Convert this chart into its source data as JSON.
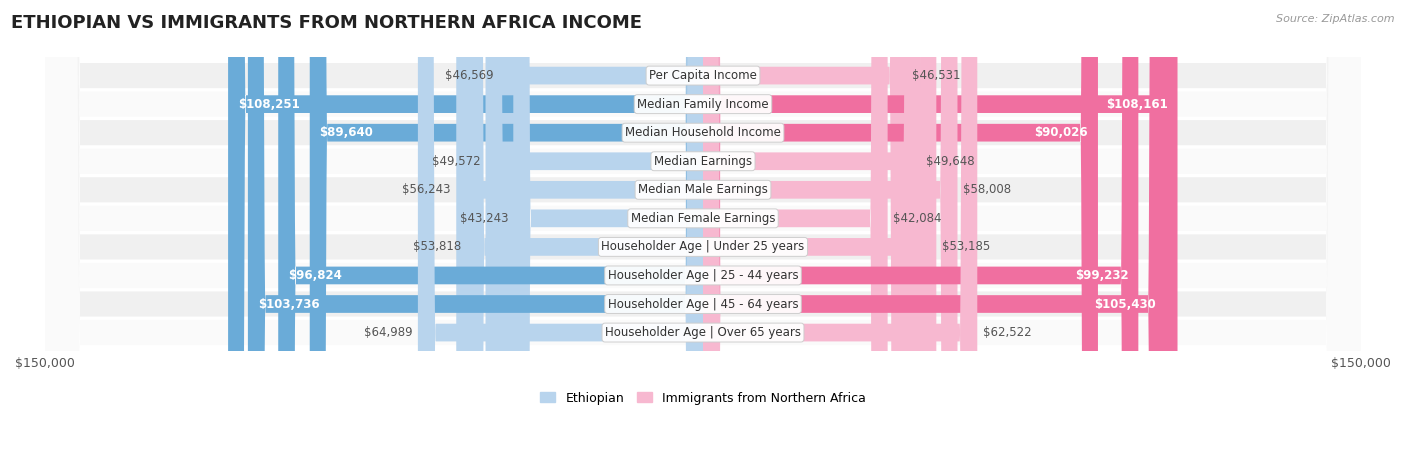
{
  "title": "ETHIOPIAN VS IMMIGRANTS FROM NORTHERN AFRICA INCOME",
  "source": "Source: ZipAtlas.com",
  "categories": [
    "Per Capita Income",
    "Median Family Income",
    "Median Household Income",
    "Median Earnings",
    "Median Male Earnings",
    "Median Female Earnings",
    "Householder Age | Under 25 years",
    "Householder Age | 25 - 44 years",
    "Householder Age | 45 - 64 years",
    "Householder Age | Over 65 years"
  ],
  "ethiopian_values": [
    46569,
    108251,
    89640,
    49572,
    56243,
    43243,
    53818,
    96824,
    103736,
    64989
  ],
  "immigrant_values": [
    46531,
    108161,
    90026,
    49648,
    58008,
    42084,
    53185,
    99232,
    105430,
    62522
  ],
  "ethiopian_labels": [
    "$46,569",
    "$108,251",
    "$89,640",
    "$49,572",
    "$56,243",
    "$43,243",
    "$53,818",
    "$96,824",
    "$103,736",
    "$64,989"
  ],
  "immigrant_labels": [
    "$46,531",
    "$108,161",
    "$90,026",
    "$49,648",
    "$58,008",
    "$42,084",
    "$53,185",
    "$99,232",
    "$105,430",
    "$62,522"
  ],
  "max_value": 150000,
  "inside_threshold": 65000,
  "ethiopian_color_light": "#b8d4ed",
  "ethiopian_color_dark": "#6aabd8",
  "immigrant_color_light": "#f7b8d0",
  "immigrant_color_dark": "#f06fa0",
  "row_bg_odd": "#f0f0f0",
  "row_bg_even": "#fafafa",
  "background_color": "#ffffff",
  "title_fontsize": 13,
  "label_fontsize": 8.5,
  "value_fontsize": 8.5,
  "legend_fontsize": 9,
  "x_tick_label": "$150,000",
  "outside_label_color": "#555555",
  "inside_label_color": "#ffffff"
}
